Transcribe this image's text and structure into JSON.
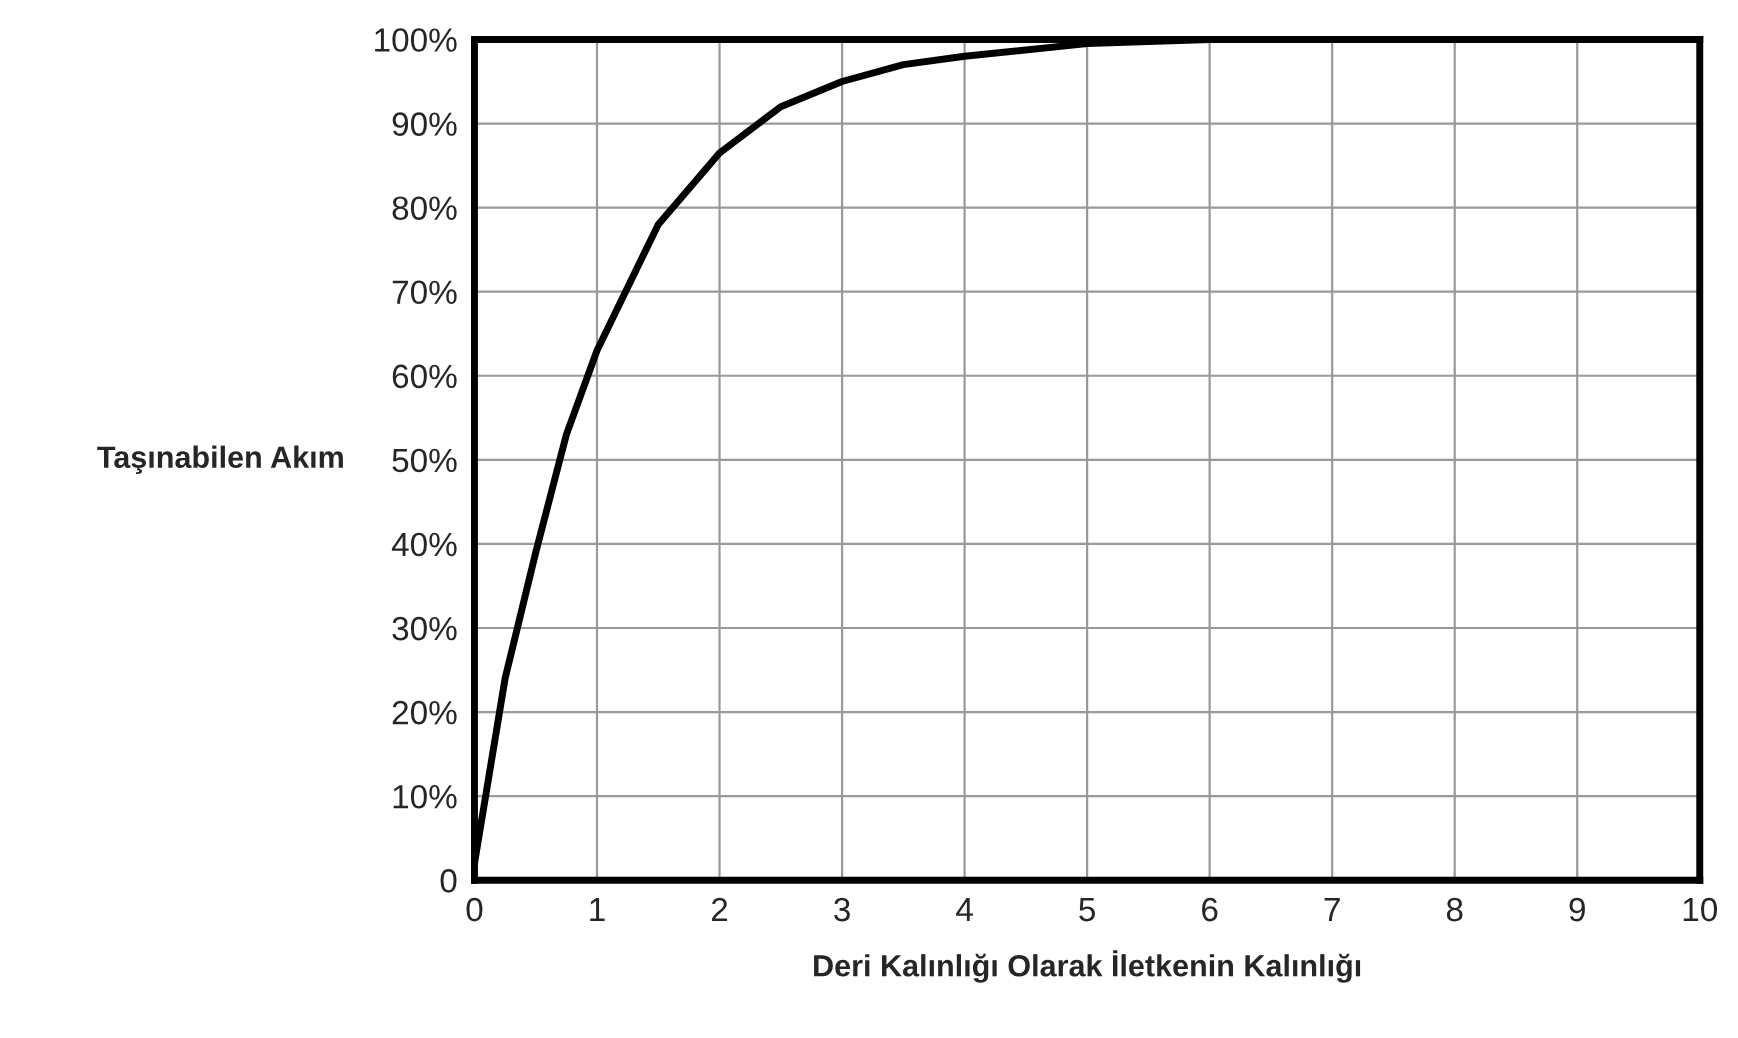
{
  "chart_data": {
    "type": "line",
    "xlabel": "Deri Kalınlığı Olarak İletkenin Kalınlığı",
    "ylabel": "Taşınabilen Akım",
    "series": [
      {
        "color": "#000000",
        "x": [
          0,
          0.25,
          0.5,
          0.75,
          1,
          1.5,
          2,
          2.5,
          3,
          3.5,
          4,
          5,
          6
        ],
        "values": [
          2,
          24,
          39,
          53,
          63,
          78,
          86.5,
          92,
          95,
          97,
          98,
          99.5,
          100
        ]
      }
    ],
    "xlim": [
      0,
      10
    ],
    "xticks": [
      0,
      1,
      2,
      3,
      4,
      5,
      6,
      7,
      8,
      9,
      10
    ],
    "ylim": [
      0,
      100
    ],
    "yticks": [
      0,
      {
        "value": 10,
        "label": "10%"
      },
      {
        "value": 20,
        "label": "20%"
      },
      {
        "value": 30,
        "label": "30%"
      },
      {
        "value": 40,
        "label": "40%"
      },
      {
        "value": 50,
        "label": "50%"
      },
      {
        "value": 60,
        "label": "60%"
      },
      {
        "value": 70,
        "label": "70%"
      },
      {
        "value": 80,
        "label": "80%"
      },
      {
        "value": 90,
        "label": "90%"
      },
      {
        "value": 100,
        "label": "100%"
      }
    ],
    "grid": true,
    "legend": false,
    "marker": "none",
    "line_style": "solid"
  }
}
